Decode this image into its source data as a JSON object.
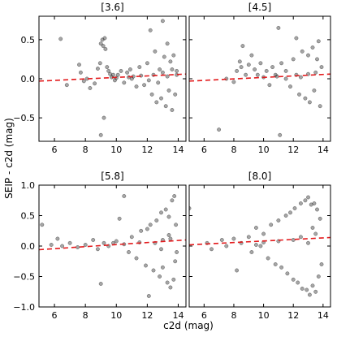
{
  "chart_data": {
    "type": "scatter",
    "xlabel": "c2d (mag)",
    "ylabel": "SEIP - c2d (mag)",
    "colors": {
      "points": "#000000",
      "fit_line": "#e31a1c"
    },
    "grid": false,
    "panels": [
      {
        "title": "[3.6]",
        "xlim": [
          5,
          14.5
        ],
        "ylim": [
          -0.8,
          0.8
        ],
        "xticks": [
          6,
          8,
          10,
          12,
          14
        ],
        "yticks": [
          -0.5,
          0.0,
          0.5
        ],
        "fit_line": {
          "x": [
            5,
            14.5
          ],
          "y": [
            -0.03,
            0.06
          ]
        },
        "points": [
          [
            6.4,
            0.51
          ],
          [
            7.6,
            0.18
          ],
          [
            7.7,
            0.08
          ],
          [
            7.9,
            -0.03
          ],
          [
            8.1,
            0.0
          ],
          [
            8.3,
            -0.12
          ],
          [
            8.6,
            -0.06
          ],
          [
            8.8,
            0.13
          ],
          [
            8.95,
            0.2
          ],
          [
            9.0,
            0.45
          ],
          [
            9.1,
            0.5
          ],
          [
            9.15,
            0.42
          ],
          [
            9.25,
            0.52
          ],
          [
            9.3,
            0.38
          ],
          [
            9.4,
            0.15
          ],
          [
            9.5,
            0.1
          ],
          [
            9.6,
            0.06
          ],
          [
            9.7,
            0.02
          ],
          [
            9.8,
            0.05
          ],
          [
            9.9,
            -0.02
          ],
          [
            10.1,
            0.05
          ],
          [
            10.3,
            0.1
          ],
          [
            10.5,
            -0.05
          ],
          [
            10.7,
            0.08
          ],
          [
            10.9,
            0.12
          ],
          [
            11.1,
            0.03
          ],
          [
            11.3,
            -0.1
          ],
          [
            11.5,
            0.15
          ],
          [
            11.8,
            -0.08
          ],
          [
            12.0,
            0.2
          ],
          [
            12.2,
            0.62
          ],
          [
            12.3,
            -0.2
          ],
          [
            12.5,
            0.35
          ],
          [
            12.6,
            -0.3
          ],
          [
            12.8,
            0.12
          ],
          [
            12.9,
            -0.25
          ],
          [
            13.0,
            0.74
          ],
          [
            13.1,
            0.28
          ],
          [
            13.2,
            -0.35
          ],
          [
            13.3,
            0.45
          ],
          [
            13.4,
            -0.15
          ],
          [
            13.5,
            0.22
          ],
          [
            13.6,
            -0.4
          ],
          [
            13.7,
            0.3
          ],
          [
            13.8,
            -0.2
          ],
          [
            13.9,
            0.1
          ],
          [
            9.0,
            -0.72
          ],
          [
            9.2,
            -0.5
          ],
          [
            6.8,
            -0.08
          ],
          [
            12.4,
            0.05
          ],
          [
            12.7,
            -0.05
          ],
          [
            13.0,
            0.08
          ],
          [
            13.3,
            0.03
          ],
          [
            13.6,
            0.12
          ],
          [
            13.9,
            0.05
          ],
          [
            11.0,
            0.0
          ],
          [
            11.6,
            0.04
          ],
          [
            12.1,
            -0.02
          ],
          [
            10.0,
            0.01
          ],
          [
            10.8,
            0.02
          ]
        ]
      },
      {
        "title": "[4.5]",
        "xlim": [
          5,
          14.5
        ],
        "ylim": [
          -0.8,
          0.8
        ],
        "xticks": [
          6,
          8,
          10,
          12,
          14
        ],
        "yticks": [
          -0.5,
          0.0,
          0.5
        ],
        "fit_line": {
          "x": [
            5,
            14.5
          ],
          "y": [
            -0.03,
            0.06
          ]
        },
        "points": [
          [
            7.0,
            -0.65
          ],
          [
            7.5,
            0.0
          ],
          [
            8.0,
            -0.04
          ],
          [
            8.2,
            0.1
          ],
          [
            8.4,
            0.22
          ],
          [
            8.5,
            0.15
          ],
          [
            8.6,
            0.42
          ],
          [
            8.8,
            0.05
          ],
          [
            9.0,
            0.18
          ],
          [
            9.2,
            0.3
          ],
          [
            9.4,
            0.12
          ],
          [
            9.6,
            0.05
          ],
          [
            9.8,
            0.2
          ],
          [
            10.0,
            0.02
          ],
          [
            10.2,
            0.1
          ],
          [
            10.4,
            -0.08
          ],
          [
            10.6,
            0.15
          ],
          [
            10.8,
            0.05
          ],
          [
            11.0,
            0.65
          ],
          [
            11.1,
            -0.72
          ],
          [
            11.2,
            0.2
          ],
          [
            11.5,
            0.1
          ],
          [
            11.8,
            -0.1
          ],
          [
            12.0,
            0.25
          ],
          [
            12.2,
            0.05
          ],
          [
            12.4,
            -0.2
          ],
          [
            12.6,
            0.35
          ],
          [
            12.8,
            -0.25
          ],
          [
            13.0,
            0.3
          ],
          [
            13.1,
            -0.3
          ],
          [
            13.3,
            0.4
          ],
          [
            13.4,
            -0.15
          ],
          [
            13.6,
            0.25
          ],
          [
            13.8,
            -0.35
          ],
          [
            13.9,
            0.15
          ],
          [
            12.5,
            0.02
          ],
          [
            13.0,
            0.06
          ],
          [
            13.5,
            0.08
          ],
          [
            11.5,
            0.0
          ],
          [
            10.9,
            0.03
          ],
          [
            12.2,
            0.52
          ],
          [
            13.7,
            0.48
          ]
        ]
      },
      {
        "title": "[5.8]",
        "xlim": [
          5,
          14.5
        ],
        "ylim": [
          -1.0,
          1.0
        ],
        "xticks": [
          6,
          8,
          10,
          12,
          14
        ],
        "yticks": [
          -1.0,
          -0.5,
          0.0,
          0.5,
          1.0
        ],
        "fit_line": {
          "x": [
            5,
            14.5
          ],
          "y": [
            -0.06,
            0.1
          ]
        },
        "points": [
          [
            5.2,
            0.35
          ],
          [
            5.8,
            0.02
          ],
          [
            6.2,
            0.12
          ],
          [
            6.5,
            0.0
          ],
          [
            7.0,
            0.05
          ],
          [
            7.5,
            -0.02
          ],
          [
            8.0,
            0.02
          ],
          [
            8.5,
            0.1
          ],
          [
            8.8,
            -0.05
          ],
          [
            9.0,
            -0.62
          ],
          [
            9.2,
            0.05
          ],
          [
            9.5,
            0.0
          ],
          [
            10.0,
            0.08
          ],
          [
            10.2,
            0.45
          ],
          [
            10.5,
            0.82
          ],
          [
            10.8,
            -0.1
          ],
          [
            11.0,
            0.15
          ],
          [
            11.3,
            -0.2
          ],
          [
            11.6,
            0.25
          ],
          [
            11.9,
            -0.32
          ],
          [
            12.0,
            0.28
          ],
          [
            12.1,
            -0.82
          ],
          [
            12.2,
            0.35
          ],
          [
            12.4,
            -0.4
          ],
          [
            12.6,
            0.42
          ],
          [
            12.8,
            -0.5
          ],
          [
            12.9,
            0.55
          ],
          [
            13.0,
            -0.35
          ],
          [
            13.2,
            0.6
          ],
          [
            13.3,
            -0.6
          ],
          [
            13.4,
            0.48
          ],
          [
            13.5,
            -0.68
          ],
          [
            13.6,
            0.75
          ],
          [
            13.7,
            -0.55
          ],
          [
            13.75,
            0.82
          ],
          [
            13.8,
            -0.25
          ],
          [
            13.85,
            0.35
          ],
          [
            13.9,
            -0.1
          ],
          [
            12.5,
            0.05
          ],
          [
            13.0,
            0.1
          ],
          [
            13.5,
            0.12
          ],
          [
            11.5,
            0.06
          ],
          [
            10.5,
            0.03
          ],
          [
            9.8,
            0.05
          ],
          [
            12.9,
            -0.05
          ],
          [
            13.4,
            0.18
          ]
        ]
      },
      {
        "title": "[8.0]",
        "xlim": [
          5,
          14.5
        ],
        "ylim": [
          -1.0,
          1.0
        ],
        "xticks": [
          6,
          8,
          10,
          12,
          14
        ],
        "yticks": [
          -1.0,
          -0.5,
          0.0,
          0.5,
          1.0
        ],
        "fit_line": {
          "x": [
            5,
            14.5
          ],
          "y": [
            0.02,
            0.14
          ]
        },
        "points": [
          [
            5.0,
            0.62
          ],
          [
            6.2,
            0.05
          ],
          [
            6.5,
            -0.05
          ],
          [
            7.2,
            0.1
          ],
          [
            7.5,
            0.0
          ],
          [
            8.0,
            0.12
          ],
          [
            8.2,
            -0.4
          ],
          [
            8.5,
            0.05
          ],
          [
            9.0,
            0.15
          ],
          [
            9.2,
            -0.1
          ],
          [
            9.5,
            0.3
          ],
          [
            9.8,
            0.0
          ],
          [
            10.0,
            0.2
          ],
          [
            10.3,
            -0.2
          ],
          [
            10.5,
            0.35
          ],
          [
            10.8,
            -0.3
          ],
          [
            11.0,
            0.42
          ],
          [
            11.2,
            -0.35
          ],
          [
            11.5,
            0.5
          ],
          [
            11.6,
            -0.45
          ],
          [
            11.8,
            0.55
          ],
          [
            12.0,
            -0.55
          ],
          [
            12.1,
            0.62
          ],
          [
            12.3,
            -0.6
          ],
          [
            12.5,
            0.7
          ],
          [
            12.6,
            -0.7
          ],
          [
            12.8,
            0.75
          ],
          [
            12.9,
            -0.72
          ],
          [
            13.0,
            0.8
          ],
          [
            13.1,
            -0.8
          ],
          [
            13.2,
            0.68
          ],
          [
            13.3,
            -0.65
          ],
          [
            13.4,
            0.7
          ],
          [
            13.5,
            -0.75
          ],
          [
            13.6,
            0.6
          ],
          [
            13.7,
            -0.5
          ],
          [
            13.8,
            0.45
          ],
          [
            13.9,
            -0.3
          ],
          [
            12.0,
            0.1
          ],
          [
            12.5,
            0.15
          ],
          [
            13.0,
            0.05
          ],
          [
            13.5,
            0.2
          ],
          [
            11.0,
            0.08
          ],
          [
            10.0,
            0.06
          ],
          [
            9.5,
            0.02
          ],
          [
            13.3,
            0.3
          ]
        ]
      }
    ]
  }
}
